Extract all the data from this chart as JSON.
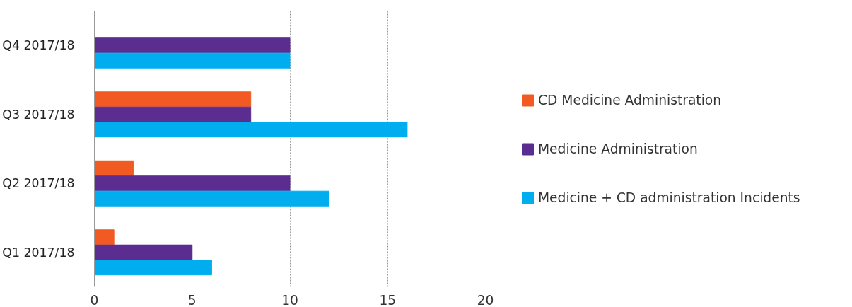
{
  "chart_data": {
    "type": "bar",
    "orientation": "horizontal",
    "categories": [
      "Q4 2017/18",
      "Q3 2017/18",
      "Q2 2017/18",
      "Q1 2017/18"
    ],
    "series": [
      {
        "name": "CD Medicine Administration",
        "color": "#f15a22",
        "values": [
          null,
          8,
          2,
          1
        ]
      },
      {
        "name": "Medicine Administration",
        "color": "#5b2d90",
        "values": [
          10,
          8,
          10,
          5
        ]
      },
      {
        "name": "Medicine + CD administration Incidents",
        "color": "#00aeef",
        "values": [
          10,
          16,
          12,
          6
        ]
      }
    ],
    "xlim": [
      0,
      20
    ],
    "xticks": [
      0,
      5,
      10,
      15,
      20
    ],
    "grid": "x",
    "legend": "right"
  }
}
